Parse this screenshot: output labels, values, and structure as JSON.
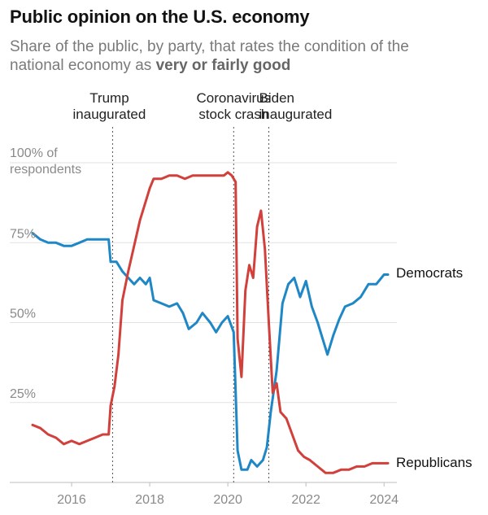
{
  "chart_data": {
    "type": "line",
    "title": "Public opinion on the U.S. economy",
    "subtitle_prefix": "Share of the public, by party, that rates the condition of the national economy as ",
    "subtitle_bold": "very or fairly good",
    "y_unit_label": [
      "100% of",
      "respondents"
    ],
    "y_ticks": [
      {
        "value": 25,
        "label": "25%"
      },
      {
        "value": 50,
        "label": "50%"
      },
      {
        "value": 75,
        "label": "75%"
      }
    ],
    "x_ticks": [
      {
        "value": 2016,
        "label": "2016"
      },
      {
        "value": 2018,
        "label": "2018"
      },
      {
        "value": 2020,
        "label": "2020"
      },
      {
        "value": 2022,
        "label": "2022"
      },
      {
        "value": 2024,
        "label": "2024"
      }
    ],
    "xlim": [
      2015.0,
      2024.1
    ],
    "ylim": [
      0,
      100
    ],
    "grid": true,
    "annotations": [
      {
        "x": 2017.05,
        "lines": [
          "Trump",
          "inaugurated"
        ]
      },
      {
        "x": 2020.15,
        "lines": [
          "Coronavirus",
          "stock crash"
        ]
      },
      {
        "x": 2021.05,
        "lines": [
          "Biden",
          "inaugurated"
        ]
      }
    ],
    "series": [
      {
        "name": "Democrats",
        "color": "#1f87c6",
        "points": [
          [
            2015.0,
            78
          ],
          [
            2015.2,
            76
          ],
          [
            2015.4,
            75
          ],
          [
            2015.6,
            75
          ],
          [
            2015.8,
            74
          ],
          [
            2016.0,
            74
          ],
          [
            2016.2,
            75
          ],
          [
            2016.4,
            76
          ],
          [
            2016.6,
            76
          ],
          [
            2016.8,
            76
          ],
          [
            2016.95,
            76
          ],
          [
            2017.0,
            69
          ],
          [
            2017.15,
            69
          ],
          [
            2017.3,
            66
          ],
          [
            2017.45,
            64
          ],
          [
            2017.6,
            62
          ],
          [
            2017.75,
            64
          ],
          [
            2017.9,
            62
          ],
          [
            2018.0,
            64
          ],
          [
            2018.1,
            57
          ],
          [
            2018.3,
            56
          ],
          [
            2018.5,
            55
          ],
          [
            2018.7,
            56
          ],
          [
            2018.85,
            53
          ],
          [
            2019.0,
            48
          ],
          [
            2019.2,
            50
          ],
          [
            2019.35,
            53
          ],
          [
            2019.55,
            50
          ],
          [
            2019.7,
            47
          ],
          [
            2019.85,
            50
          ],
          [
            2020.0,
            52
          ],
          [
            2020.15,
            47
          ],
          [
            2020.25,
            10
          ],
          [
            2020.35,
            4
          ],
          [
            2020.5,
            4
          ],
          [
            2020.6,
            7
          ],
          [
            2020.75,
            5
          ],
          [
            2020.9,
            7
          ],
          [
            2021.0,
            11
          ],
          [
            2021.1,
            22
          ],
          [
            2021.25,
            35
          ],
          [
            2021.4,
            56
          ],
          [
            2021.55,
            62
          ],
          [
            2021.7,
            64
          ],
          [
            2021.85,
            58
          ],
          [
            2022.0,
            63
          ],
          [
            2022.15,
            55
          ],
          [
            2022.3,
            50
          ],
          [
            2022.45,
            44
          ],
          [
            2022.55,
            40
          ],
          [
            2022.7,
            46
          ],
          [
            2022.85,
            51
          ],
          [
            2023.0,
            55
          ],
          [
            2023.2,
            56
          ],
          [
            2023.4,
            58
          ],
          [
            2023.6,
            62
          ],
          [
            2023.8,
            62
          ],
          [
            2024.0,
            65
          ],
          [
            2024.1,
            65
          ]
        ]
      },
      {
        "name": "Republicans",
        "color": "#d1403b",
        "points": [
          [
            2015.0,
            18
          ],
          [
            2015.2,
            17
          ],
          [
            2015.4,
            15
          ],
          [
            2015.6,
            14
          ],
          [
            2015.8,
            12
          ],
          [
            2016.0,
            13
          ],
          [
            2016.2,
            12
          ],
          [
            2016.4,
            13
          ],
          [
            2016.6,
            14
          ],
          [
            2016.8,
            15
          ],
          [
            2016.95,
            15
          ],
          [
            2017.0,
            24
          ],
          [
            2017.1,
            30
          ],
          [
            2017.2,
            40
          ],
          [
            2017.3,
            57
          ],
          [
            2017.45,
            66
          ],
          [
            2017.6,
            74
          ],
          [
            2017.75,
            82
          ],
          [
            2017.9,
            88
          ],
          [
            2018.0,
            92
          ],
          [
            2018.1,
            95
          ],
          [
            2018.3,
            95
          ],
          [
            2018.5,
            96
          ],
          [
            2018.7,
            96
          ],
          [
            2018.9,
            95
          ],
          [
            2019.1,
            96
          ],
          [
            2019.3,
            96
          ],
          [
            2019.5,
            96
          ],
          [
            2019.7,
            96
          ],
          [
            2019.9,
            96
          ],
          [
            2020.0,
            97
          ],
          [
            2020.1,
            96
          ],
          [
            2020.2,
            94
          ],
          [
            2020.25,
            45
          ],
          [
            2020.35,
            33
          ],
          [
            2020.45,
            60
          ],
          [
            2020.55,
            68
          ],
          [
            2020.65,
            64
          ],
          [
            2020.75,
            80
          ],
          [
            2020.85,
            85
          ],
          [
            2020.95,
            73
          ],
          [
            2021.05,
            50
          ],
          [
            2021.15,
            28
          ],
          [
            2021.25,
            31
          ],
          [
            2021.35,
            22
          ],
          [
            2021.5,
            20
          ],
          [
            2021.65,
            15
          ],
          [
            2021.8,
            10
          ],
          [
            2021.95,
            8
          ],
          [
            2022.1,
            7
          ],
          [
            2022.3,
            5
          ],
          [
            2022.5,
            3
          ],
          [
            2022.7,
            3
          ],
          [
            2022.9,
            4
          ],
          [
            2023.1,
            4
          ],
          [
            2023.3,
            5
          ],
          [
            2023.5,
            5
          ],
          [
            2023.7,
            6
          ],
          [
            2023.9,
            6
          ],
          [
            2024.0,
            6
          ],
          [
            2024.1,
            6
          ]
        ]
      }
    ]
  }
}
